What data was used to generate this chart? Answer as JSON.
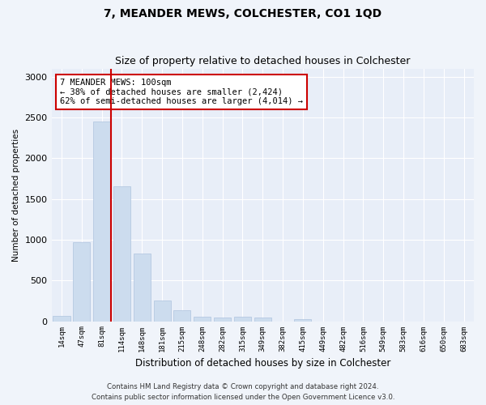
{
  "title": "7, MEANDER MEWS, COLCHESTER, CO1 1QD",
  "subtitle": "Size of property relative to detached houses in Colchester",
  "xlabel": "Distribution of detached houses by size in Colchester",
  "ylabel": "Number of detached properties",
  "categories": [
    "14sqm",
    "47sqm",
    "81sqm",
    "114sqm",
    "148sqm",
    "181sqm",
    "215sqm",
    "248sqm",
    "282sqm",
    "315sqm",
    "349sqm",
    "382sqm",
    "415sqm",
    "449sqm",
    "482sqm",
    "516sqm",
    "549sqm",
    "583sqm",
    "616sqm",
    "650sqm",
    "683sqm"
  ],
  "values": [
    70,
    970,
    2450,
    1650,
    830,
    250,
    130,
    60,
    50,
    55,
    45,
    0,
    30,
    0,
    0,
    0,
    0,
    0,
    0,
    0,
    0
  ],
  "bar_color": "#ccdcee",
  "bar_edgecolor": "#aec4de",
  "vline_color": "#cc0000",
  "annotation_text": "7 MEANDER MEWS: 100sqm\n← 38% of detached houses are smaller (2,424)\n62% of semi-detached houses are larger (4,014) →",
  "annotation_box_color": "white",
  "annotation_box_edgecolor": "#cc0000",
  "ylim": [
    0,
    3100
  ],
  "yticks": [
    0,
    500,
    1000,
    1500,
    2000,
    2500,
    3000
  ],
  "bg_color": "#f0f4fa",
  "plot_bg_color": "#e8eef8",
  "footer_line1": "Contains HM Land Registry data © Crown copyright and database right 2024.",
  "footer_line2": "Contains public sector information licensed under the Open Government Licence v3.0.",
  "title_fontsize": 10,
  "subtitle_fontsize": 9
}
